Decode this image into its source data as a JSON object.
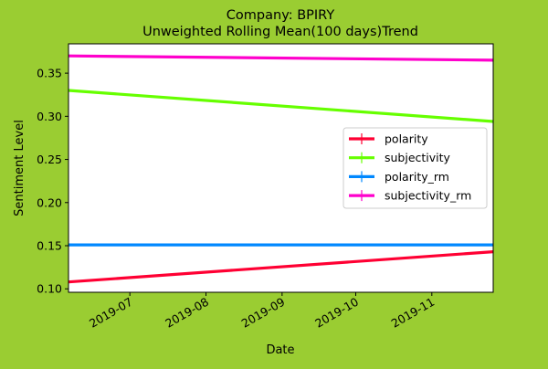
{
  "chart_data": {
    "type": "line",
    "title_line1": "Company: BPIRY",
    "title_line2": "Unweighted Rolling Mean(100 days)Trend",
    "xlabel": "Date",
    "ylabel": "Sentiment Level",
    "x_range": [
      "2019-06-06",
      "2019-11-26"
    ],
    "ylim": [
      0.096,
      0.384
    ],
    "y_ticks": [
      0.1,
      0.15,
      0.2,
      0.25,
      0.3,
      0.35
    ],
    "y_tick_labels": [
      "0.10",
      "0.15",
      "0.20",
      "0.25",
      "0.30",
      "0.35"
    ],
    "x_ticks": [
      "2019-07-01",
      "2019-08-01",
      "2019-09-01",
      "2019-10-01",
      "2019-11-01"
    ],
    "x_tick_labels": [
      "2019-07",
      "2019-08",
      "2019-09",
      "2019-10",
      "2019-11"
    ],
    "grid": false,
    "legend_position": "right",
    "series": [
      {
        "name": "polarity",
        "color": "#ff0033",
        "x": [
          "2019-06-06",
          "2019-11-26"
        ],
        "y": [
          0.108,
          0.143
        ]
      },
      {
        "name": "subjectivity",
        "color": "#66ff00",
        "x": [
          "2019-06-06",
          "2019-11-26"
        ],
        "y": [
          0.33,
          0.294
        ]
      },
      {
        "name": "polarity_rm",
        "color": "#0088ff",
        "x": [
          "2019-06-06",
          "2019-11-26"
        ],
        "y": [
          0.151,
          0.151
        ]
      },
      {
        "name": "subjectivity_rm",
        "color": "#ff00cc",
        "x": [
          "2019-06-06",
          "2019-11-26"
        ],
        "y": [
          0.37,
          0.365
        ]
      }
    ]
  }
}
